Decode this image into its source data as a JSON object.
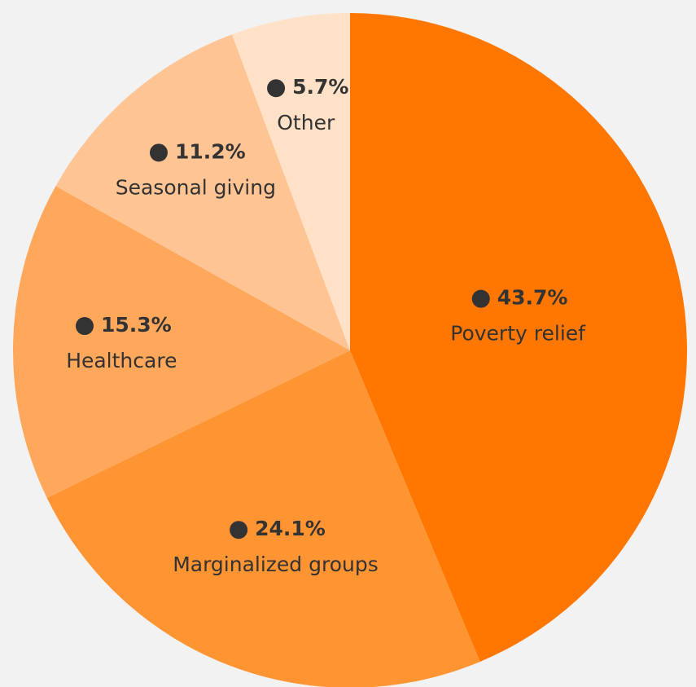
{
  "chart_data": {
    "type": "pie",
    "categories": [
      "Poverty relief",
      "Marginalized groups",
      "Healthcare",
      "Seasonal giving",
      "Other"
    ],
    "values": [
      43.7,
      24.1,
      15.3,
      11.2,
      5.7
    ],
    "value_labels": [
      "43.7%",
      "24.1%",
      "15.3%",
      "11.2%",
      "5.7%"
    ],
    "colors": [
      "#ff7700",
      "#ff9433",
      "#ffa85c",
      "#ffc494",
      "#ffe1c8"
    ]
  }
}
